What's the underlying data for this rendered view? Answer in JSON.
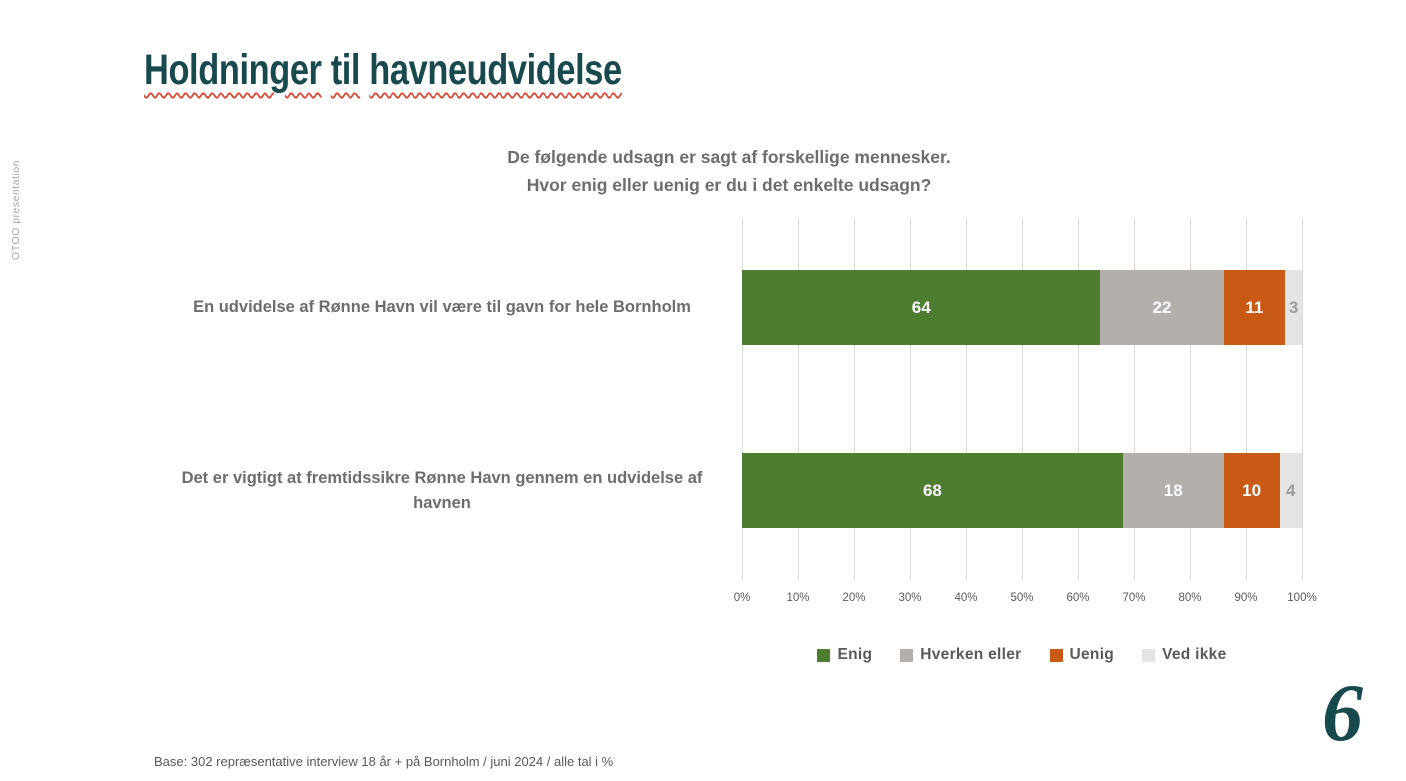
{
  "page": {
    "title": "Holdninger til havneudvidelse",
    "side_label": "OTOO presentation",
    "footer": "Base: 302 repræsentative interview 18 år + på Bornholm / juni 2024 / alle tal i %",
    "logo_glyph": "6"
  },
  "colors": {
    "title": "#17494d",
    "title_underline": "#dd4a36",
    "subtitle_text": "#6d6d6d",
    "axis_text": "#595959",
    "grid_line": "#d9d9d9",
    "legend_text": "#595959",
    "side_label_text": "#a6a6a6",
    "logo": "#17494d"
  },
  "chart_data": {
    "type": "bar",
    "stacked": true,
    "orientation": "horizontal",
    "title": "De følgende udsagn er sagt af forskellige mennesker.\nHvor enig eller uenig er du i det enkelte udsagn?",
    "categories": [
      "En udvidelse af Rønne Havn vil være til gavn for hele Bornholm",
      "Det er vigtigt at fremtidssikre Rønne Havn gennem en udvidelse af havnen"
    ],
    "series": [
      {
        "name": "Enig",
        "color": "#4e7c31",
        "label_color": "#ffffff",
        "values": [
          64,
          68
        ]
      },
      {
        "name": "Hverken eller",
        "color": "#b2afac",
        "label_color": "#ffffff",
        "values": [
          22,
          18
        ]
      },
      {
        "name": "Uenig",
        "color": "#c95a16",
        "label_color": "#ffffff",
        "values": [
          11,
          10
        ]
      },
      {
        "name": "Ved ikke",
        "color": "#e6e4e2",
        "label_color": "#9c9c9c",
        "values": [
          3,
          4
        ]
      }
    ],
    "xlim": [
      0,
      100
    ],
    "x_ticks": [
      0,
      10,
      20,
      30,
      40,
      50,
      60,
      70,
      80,
      90,
      100
    ],
    "x_tick_suffix": "%",
    "grid": true,
    "legend_position": "bottom",
    "value_labels": true
  }
}
